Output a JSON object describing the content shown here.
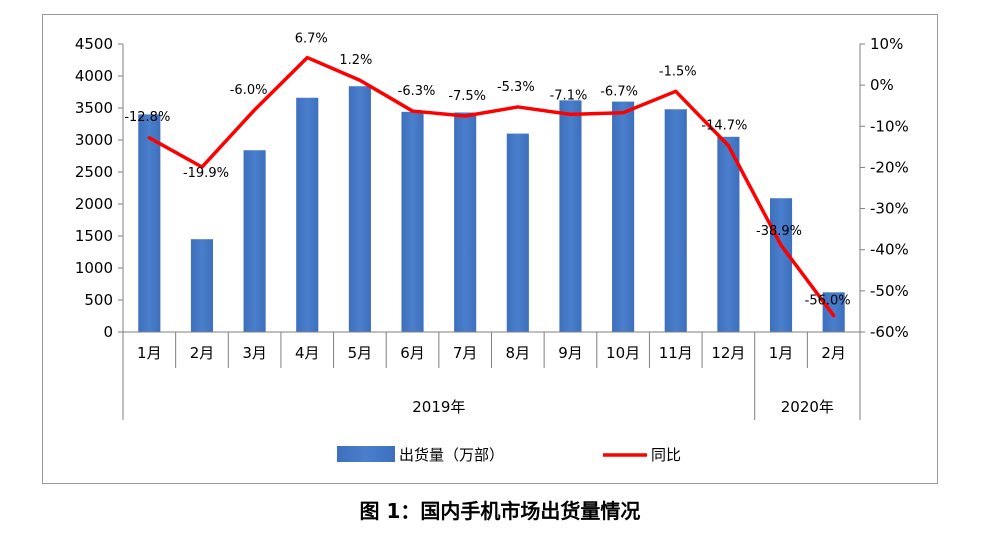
{
  "caption": "图 1：国内手机市场出货量情况",
  "chart_data": {
    "type": "bar",
    "categories": [
      "1月",
      "2月",
      "3月",
      "4月",
      "5月",
      "6月",
      "7月",
      "8月",
      "9月",
      "10月",
      "11月",
      "12月",
      "1月",
      "2月"
    ],
    "groups": [
      {
        "label": "2019年",
        "count": 12
      },
      {
        "label": "2020年",
        "count": 2
      }
    ],
    "series": [
      {
        "name": "出货量（万部）",
        "type": "bar",
        "axis": "left",
        "color": "#4a7fcc",
        "values": [
          3400,
          1450,
          2840,
          3660,
          3840,
          3440,
          3430,
          3100,
          3620,
          3600,
          3480,
          3050,
          2090,
          620
        ]
      },
      {
        "name": "同比",
        "type": "line",
        "axis": "right",
        "color": "#ff0000",
        "values": [
          -12.8,
          -19.9,
          -6.0,
          6.7,
          1.2,
          -6.3,
          -7.5,
          -5.3,
          -7.1,
          -6.7,
          -1.5,
          -14.7,
          -38.9,
          -56.0
        ],
        "labels": [
          "-12.8%",
          "-19.9%",
          "-6.0%",
          "6.7%",
          "1.2%",
          "-6.3%",
          "-7.5%",
          "-5.3%",
          "-7.1%",
          "-6.7%",
          "-1.5%",
          "-14.7%",
          "-38.9%",
          "-56.0%"
        ]
      }
    ],
    "y_left": {
      "min": 0,
      "max": 4500,
      "step": 500,
      "ticks": [
        "0",
        "500",
        "1000",
        "1500",
        "2000",
        "2500",
        "3000",
        "3500",
        "4000",
        "4500"
      ]
    },
    "y_right": {
      "min": -60,
      "max": 10,
      "step": 10,
      "ticks": [
        "-60%",
        "-50%",
        "-40%",
        "-30%",
        "-20%",
        "-10%",
        "0%",
        "10%"
      ]
    },
    "legend_position": "bottom",
    "grid": false
  }
}
